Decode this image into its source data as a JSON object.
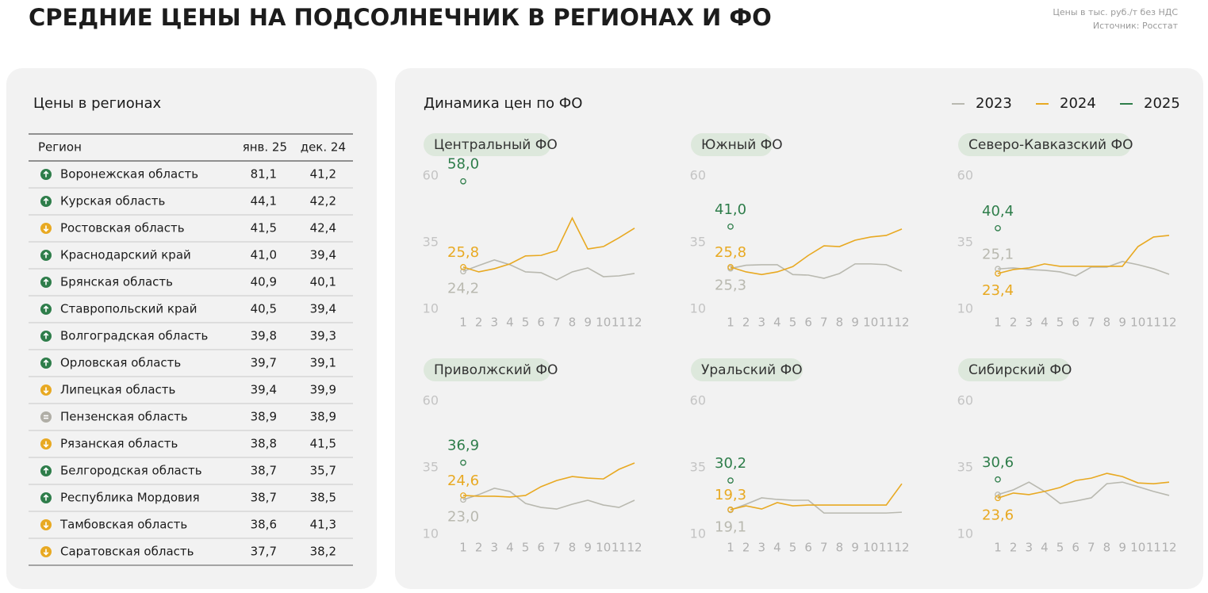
{
  "header": {
    "title": "СРЕДНИЕ ЦЕНЫ НА ПОДСОЛНЕЧНИК В РЕГИОНАХ И ФО",
    "note": "Цены в тыс. руб./т без НДС",
    "source": "Источник: Росстат"
  },
  "table": {
    "title": "Цены в регионах",
    "columns": [
      "Регион",
      "янв. 25",
      "дек. 24"
    ],
    "rows": [
      {
        "region": "Воронежская область",
        "jan": "81,1",
        "dec": "41,2",
        "trend": "up"
      },
      {
        "region": "Курская область",
        "jan": "44,1",
        "dec": "42,2",
        "trend": "up"
      },
      {
        "region": "Ростовская область",
        "jan": "41,5",
        "dec": "42,4",
        "trend": "down"
      },
      {
        "region": "Краснодарский край",
        "jan": "41,0",
        "dec": "39,4",
        "trend": "up"
      },
      {
        "region": "Брянская область",
        "jan": "40,9",
        "dec": "40,1",
        "trend": "up"
      },
      {
        "region": "Ставропольский край",
        "jan": "40,5",
        "dec": "39,4",
        "trend": "up"
      },
      {
        "region": "Волгоградская область",
        "jan": "39,8",
        "dec": "39,3",
        "trend": "up"
      },
      {
        "region": "Орловская область",
        "jan": "39,7",
        "dec": "39,1",
        "trend": "up"
      },
      {
        "region": "Липецкая область",
        "jan": "39,4",
        "dec": "39,9",
        "trend": "down"
      },
      {
        "region": "Пензенская область",
        "jan": "38,9",
        "dec": "38,9",
        "trend": "equal"
      },
      {
        "region": "Рязанская область",
        "jan": "38,8",
        "dec": "41,5",
        "trend": "down"
      },
      {
        "region": "Белгородская область",
        "jan": "38,7",
        "dec": "35,7",
        "trend": "up"
      },
      {
        "region": "Республика Мордовия",
        "jan": "38,7",
        "dec": "38,5",
        "trend": "up"
      },
      {
        "region": "Тамбовская область",
        "jan": "38,6",
        "dec": "41,3",
        "trend": "down"
      },
      {
        "region": "Саратовская область",
        "jan": "37,7",
        "dec": "38,2",
        "trend": "down"
      }
    ]
  },
  "charts_panel": {
    "title": "Динамика цен по ФО"
  },
  "chart_data": [
    {
      "type": "line",
      "title": "Центральный ФО",
      "x": [
        1,
        2,
        3,
        4,
        5,
        6,
        7,
        8,
        9,
        10,
        11,
        12
      ],
      "xlim": [
        1,
        12
      ],
      "xticks": [
        1,
        2,
        3,
        4,
        5,
        6,
        7,
        8,
        9,
        10,
        11,
        12
      ],
      "ylim": [
        10,
        60
      ],
      "yticks": [
        10,
        35,
        60
      ],
      "grid": false,
      "series": [
        {
          "name": "2023",
          "color": "#b9b9b0",
          "values": [
            24.2,
            26.4,
            28.5,
            26.7,
            24,
            23.7,
            21,
            24,
            25.5,
            22.2,
            22.5,
            23.4
          ],
          "value_labels": [
            "24,2",
            null,
            null,
            null,
            null,
            null,
            null,
            null,
            null,
            null,
            null,
            null
          ]
        },
        {
          "name": "2024",
          "color": "#e8a922",
          "values": [
            25.8,
            24,
            25.2,
            27,
            30,
            30.2,
            32,
            44.2,
            32.6,
            33.5,
            36.8,
            40.4
          ],
          "value_labels": [
            "25,8",
            null,
            null,
            null,
            null,
            null,
            null,
            null,
            null,
            null,
            null,
            null
          ]
        },
        {
          "name": "2025",
          "color": "#2e7d4a",
          "values": [
            58.0,
            null,
            null,
            null,
            null,
            null,
            null,
            null,
            null,
            null,
            null,
            null
          ],
          "value_labels": [
            "58,0",
            null,
            null,
            null,
            null,
            null,
            null,
            null,
            null,
            null,
            null,
            null
          ]
        }
      ]
    },
    {
      "type": "line",
      "title": "Южный ФО",
      "x": [
        1,
        2,
        3,
        4,
        5,
        6,
        7,
        8,
        9,
        10,
        11,
        12
      ],
      "xlim": [
        1,
        12
      ],
      "xticks": [
        1,
        2,
        3,
        4,
        5,
        6,
        7,
        8,
        9,
        10,
        11,
        12
      ],
      "ylim": [
        10,
        60
      ],
      "yticks": [
        10,
        35,
        60
      ],
      "grid": false,
      "series": [
        {
          "name": "2023",
          "color": "#b9b9b0",
          "values": [
            25.3,
            26.5,
            26.7,
            26.7,
            23,
            22.8,
            21.6,
            23.4,
            27,
            27,
            26.7,
            24.3
          ],
          "value_labels": [
            "25,3",
            null,
            null,
            null,
            null,
            null,
            null,
            null,
            null,
            null,
            null,
            null
          ]
        },
        {
          "name": "2024",
          "color": "#e8a922",
          "values": [
            25.8,
            24,
            23,
            24,
            26,
            30.2,
            33.8,
            33.5,
            35.9,
            37.1,
            37.7,
            40.1
          ],
          "value_labels": [
            "25,8",
            null,
            null,
            null,
            null,
            null,
            null,
            null,
            null,
            null,
            null,
            null
          ]
        },
        {
          "name": "2025",
          "color": "#2e7d4a",
          "values": [
            41.0,
            null,
            null,
            null,
            null,
            null,
            null,
            null,
            null,
            null,
            null,
            null
          ],
          "value_labels": [
            "41,0",
            null,
            null,
            null,
            null,
            null,
            null,
            null,
            null,
            null,
            null,
            null
          ]
        }
      ]
    },
    {
      "type": "line",
      "title": "Северо-Кавказский ФО",
      "x": [
        1,
        2,
        3,
        4,
        5,
        6,
        7,
        8,
        9,
        10,
        11,
        12
      ],
      "xlim": [
        1,
        12
      ],
      "xticks": [
        1,
        2,
        3,
        4,
        5,
        6,
        7,
        8,
        9,
        10,
        11,
        12
      ],
      "ylim": [
        10,
        60
      ],
      "yticks": [
        10,
        35,
        60
      ],
      "grid": false,
      "series": [
        {
          "name": "2023",
          "color": "#b9b9b0",
          "values": [
            25.1,
            25.5,
            24.9,
            24.6,
            24,
            22.5,
            25.8,
            25.8,
            27.9,
            26.7,
            25.2,
            23.1
          ],
          "value_labels": [
            "25,1",
            null,
            null,
            null,
            null,
            null,
            null,
            null,
            null,
            null,
            null,
            null
          ]
        },
        {
          "name": "2024",
          "color": "#e8a922",
          "values": [
            23.4,
            24.9,
            25.5,
            27,
            26.1,
            26.1,
            26.1,
            26.1,
            26.1,
            33.5,
            37.1,
            37.7
          ],
          "value_labels": [
            "23,4",
            null,
            null,
            null,
            null,
            null,
            null,
            null,
            null,
            null,
            null,
            null
          ]
        },
        {
          "name": "2025",
          "color": "#2e7d4a",
          "values": [
            40.4,
            null,
            null,
            null,
            null,
            null,
            null,
            null,
            null,
            null,
            null,
            null
          ],
          "value_labels": [
            "40,4",
            null,
            null,
            null,
            null,
            null,
            null,
            null,
            null,
            null,
            null,
            null
          ]
        }
      ]
    },
    {
      "type": "line",
      "title": "Приволжский ФО",
      "x": [
        1,
        2,
        3,
        4,
        5,
        6,
        7,
        8,
        9,
        10,
        11,
        12
      ],
      "xlim": [
        1,
        12
      ],
      "xticks": [
        1,
        2,
        3,
        4,
        5,
        6,
        7,
        8,
        9,
        10,
        11,
        12
      ],
      "ylim": [
        10,
        60
      ],
      "yticks": [
        10,
        35,
        60
      ],
      "grid": false,
      "series": [
        {
          "name": "2023",
          "color": "#b9b9b0",
          "values": [
            23.0,
            24.9,
            27.3,
            26.1,
            21.6,
            20.1,
            19.5,
            21.3,
            22.8,
            21,
            20.1,
            22.8
          ],
          "value_labels": [
            "23,0",
            null,
            null,
            null,
            null,
            null,
            null,
            null,
            null,
            null,
            null,
            null
          ]
        },
        {
          "name": "2024",
          "color": "#e8a922",
          "values": [
            24.6,
            24.3,
            24.3,
            24,
            24.6,
            27.9,
            30.2,
            31.7,
            31.1,
            30.8,
            34.4,
            36.8
          ],
          "value_labels": [
            "24,6",
            null,
            null,
            null,
            null,
            null,
            null,
            null,
            null,
            null,
            null,
            null
          ]
        },
        {
          "name": "2025",
          "color": "#2e7d4a",
          "values": [
            36.9,
            null,
            null,
            null,
            null,
            null,
            null,
            null,
            null,
            null,
            null,
            null
          ],
          "value_labels": [
            "36,9",
            null,
            null,
            null,
            null,
            null,
            null,
            null,
            null,
            null,
            null,
            null
          ]
        }
      ]
    },
    {
      "type": "line",
      "title": "Уральский ФО",
      "x": [
        1,
        2,
        3,
        4,
        5,
        6,
        7,
        8,
        9,
        10,
        11,
        12
      ],
      "xlim": [
        1,
        12
      ],
      "xticks": [
        1,
        2,
        3,
        4,
        5,
        6,
        7,
        8,
        9,
        10,
        11,
        12
      ],
      "ylim": [
        10,
        60
      ],
      "yticks": [
        10,
        35,
        60
      ],
      "grid": false,
      "series": [
        {
          "name": "2023",
          "color": "#b9b9b0",
          "values": [
            19.1,
            21.3,
            23.7,
            23.1,
            22.8,
            22.8,
            18,
            18,
            18,
            18,
            18,
            18.3
          ],
          "value_labels": [
            "19,1",
            null,
            null,
            null,
            null,
            null,
            null,
            null,
            null,
            null,
            null,
            null
          ]
        },
        {
          "name": "2024",
          "color": "#e8a922",
          "values": [
            19.3,
            20.7,
            19.5,
            21.9,
            20.7,
            21,
            21,
            21,
            21,
            21,
            21,
            29
          ],
          "value_labels": [
            "19,3",
            null,
            null,
            null,
            null,
            null,
            null,
            null,
            null,
            null,
            null,
            null
          ]
        },
        {
          "name": "2025",
          "color": "#2e7d4a",
          "values": [
            30.2,
            null,
            null,
            null,
            null,
            null,
            null,
            null,
            null,
            null,
            null,
            null
          ],
          "value_labels": [
            "30,2",
            null,
            null,
            null,
            null,
            null,
            null,
            null,
            null,
            null,
            null,
            null
          ]
        }
      ]
    },
    {
      "type": "line",
      "title": "Сибирский ФО",
      "x": [
        1,
        2,
        3,
        4,
        5,
        6,
        7,
        8,
        9,
        10,
        11,
        12
      ],
      "xlim": [
        1,
        12
      ],
      "xticks": [
        1,
        2,
        3,
        4,
        5,
        6,
        7,
        8,
        9,
        10,
        11,
        12
      ],
      "ylim": [
        10,
        60
      ],
      "yticks": [
        10,
        35,
        60
      ],
      "grid": false,
      "series": [
        {
          "name": "2023",
          "color": "#b9b9b0",
          "values": [
            24.9,
            26.7,
            29.6,
            26.1,
            21.6,
            22.5,
            23.7,
            29,
            29.6,
            27.9,
            26.1,
            24.6
          ],
          "value_labels": [
            null,
            null,
            null,
            null,
            null,
            null,
            null,
            null,
            null,
            null,
            null,
            null
          ]
        },
        {
          "name": "2024",
          "color": "#e8a922",
          "values": [
            23.6,
            25.5,
            24.9,
            26.1,
            27.6,
            30.2,
            31.1,
            32.9,
            31.7,
            29.3,
            29,
            29.6
          ],
          "value_labels": [
            "23,6",
            null,
            null,
            null,
            null,
            null,
            null,
            null,
            null,
            null,
            null,
            null
          ]
        },
        {
          "name": "2025",
          "color": "#2e7d4a",
          "values": [
            30.6,
            null,
            null,
            null,
            null,
            null,
            null,
            null,
            null,
            null,
            null,
            null
          ],
          "value_labels": [
            "30,6",
            null,
            null,
            null,
            null,
            null,
            null,
            null,
            null,
            null,
            null,
            null
          ]
        }
      ]
    }
  ]
}
